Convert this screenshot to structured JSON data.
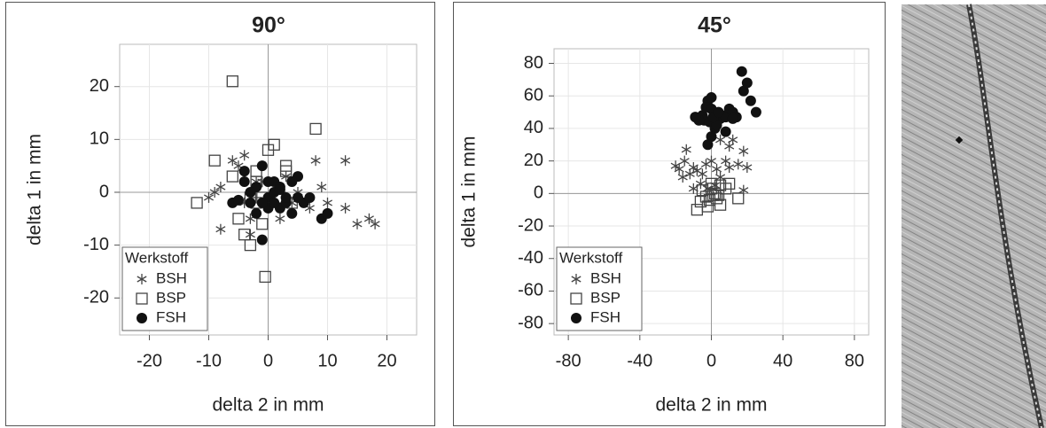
{
  "chart_data": [
    {
      "type": "scatter",
      "title": "90°",
      "xlabel": "delta 2 in mm",
      "ylabel": "delta 1 in mm",
      "xlim": [
        -25,
        25
      ],
      "ylim": [
        -27,
        28
      ],
      "xticks": [
        -20,
        -10,
        0,
        10,
        20
      ],
      "yticks": [
        -20,
        -10,
        0,
        10,
        20
      ],
      "grid": true,
      "zero_lines": true,
      "legend_title": "Werkstoff",
      "legend_position": "lower left",
      "series": [
        {
          "name": "BSH",
          "color": "#444444",
          "marker": "asterisk",
          "x": [
            -10,
            -9,
            -8,
            -8,
            -6,
            -5,
            -4,
            -3,
            -4,
            -2,
            0,
            2,
            4,
            8,
            9,
            7,
            10,
            13,
            13,
            15,
            17,
            18,
            -3,
            1,
            5,
            -1,
            3
          ],
          "y": [
            -1,
            0,
            1,
            -7,
            6,
            5,
            7,
            -8,
            -2,
            2,
            -3,
            -5,
            -2,
            6,
            1,
            -3,
            -2,
            -3,
            6,
            -6,
            -5,
            -6,
            -5,
            0,
            0,
            2,
            3
          ]
        },
        {
          "name": "BSP",
          "color": "#444444",
          "marker": "square",
          "x": [
            -12,
            -9,
            -6,
            -6,
            -5,
            -4,
            -3,
            -2,
            -2,
            -1,
            0,
            1,
            3,
            3,
            8,
            -0.5,
            -1,
            2,
            -2,
            4,
            -3
          ],
          "y": [
            -2,
            6,
            21,
            3,
            -5,
            -8,
            -10,
            2,
            -2,
            -6,
            8,
            9,
            4,
            5,
            12,
            -16,
            -1,
            -1,
            4,
            -2,
            -1
          ]
        },
        {
          "name": "FSH",
          "color": "#111111",
          "marker": "circle",
          "x": [
            -6,
            -4,
            -4,
            -3,
            -2,
            -1,
            0,
            0,
            -1,
            1,
            1,
            2,
            2,
            3,
            3,
            4,
            5,
            5,
            6,
            7,
            9,
            10,
            -3,
            -2,
            0,
            1,
            2,
            4,
            -5,
            -1
          ],
          "y": [
            -2,
            4,
            2,
            -2,
            1,
            5,
            -1,
            -3,
            -9,
            2,
            0,
            -3,
            1,
            -2,
            -1,
            -4,
            -1,
            3,
            -2,
            -1,
            -5,
            -4,
            0,
            -4,
            2,
            -2,
            0.5,
            2,
            -1.5,
            -2
          ]
        }
      ]
    },
    {
      "type": "scatter",
      "title": "45°",
      "xlabel": "delta 2 in mm",
      "ylabel": "delta 1 in mm",
      "xlim": [
        -88,
        88
      ],
      "ylim": [
        -87,
        89
      ],
      "xticks": [
        -80,
        -40,
        0,
        40,
        80
      ],
      "yticks": [
        -80,
        -60,
        -40,
        -20,
        0,
        20,
        40,
        60,
        80
      ],
      "grid": true,
      "zero_lines": true,
      "legend_title": "Werkstoff",
      "legend_position": "lower left",
      "series": [
        {
          "name": "BSH",
          "color": "#444444",
          "marker": "asterisk",
          "x": [
            -20,
            -18,
            -16,
            -14,
            -12,
            -10,
            -8,
            -5,
            -3,
            0,
            3,
            5,
            8,
            10,
            12,
            15,
            18,
            20,
            18,
            -6,
            -2,
            2,
            5,
            10,
            -15,
            -10
          ],
          "y": [
            17,
            15,
            10,
            27,
            12,
            16,
            14,
            12,
            18,
            20,
            15,
            33,
            20,
            29,
            33,
            18,
            26,
            16,
            2,
            6,
            3,
            5,
            10,
            16,
            20,
            3
          ]
        },
        {
          "name": "BSP",
          "color": "#444444",
          "marker": "square",
          "x": [
            -8,
            -6,
            -5,
            -3,
            -2,
            0,
            0,
            2,
            3,
            5,
            5,
            8,
            10,
            15,
            -1,
            1,
            4
          ],
          "y": [
            -10,
            -5,
            2,
            -2,
            -8,
            3,
            6,
            0,
            -3,
            -7,
            5,
            3,
            6,
            -3,
            -4,
            -1,
            -1
          ]
        },
        {
          "name": "FSH",
          "color": "#111111",
          "marker": "circle",
          "x": [
            -5,
            -4,
            -2,
            0,
            -3,
            0,
            -1,
            2,
            0,
            -2,
            5,
            6,
            8,
            10,
            12,
            14,
            12,
            17,
            18,
            20,
            22,
            25,
            8,
            3,
            -7,
            -9,
            1,
            4
          ],
          "y": [
            48,
            45,
            57,
            59,
            53,
            52,
            44,
            40,
            35,
            30,
            46,
            48,
            47,
            52,
            50,
            47,
            46,
            75,
            63,
            68,
            57,
            50,
            38,
            42,
            45,
            47,
            47,
            50
          ]
        }
      ]
    }
  ]
}
